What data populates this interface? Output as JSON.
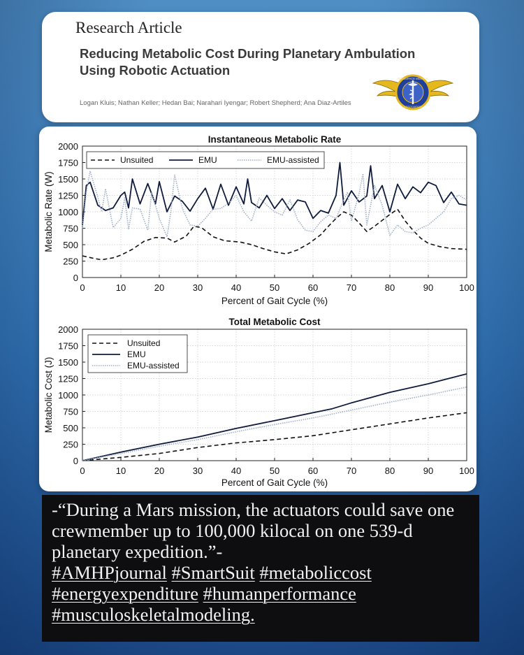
{
  "header": {
    "kicker": "Research Article",
    "title": "Reducing Metabolic Cost During Planetary Ambulation Using Robotic Actuation",
    "authors": "Logan Kluis; Nathan Keller; Hedan Bai; Narahari Iyengar; Robert Shepherd; Ana Diaz-Artiles",
    "logo_text_top": "AEROSPACE MEDICAL",
    "logo_text_bottom": "ASSOCIATION"
  },
  "colors": {
    "unsuited": "#111111",
    "emu": "#0f1b3d",
    "emu_assisted": "#9fb0c8"
  },
  "chart_data": [
    {
      "type": "line",
      "title": "Instantaneous Metabolic Rate",
      "xlabel": "Percent of Gait Cycle (%)",
      "ylabel": "Metabolic Rate (W)",
      "xlim": [
        0,
        100
      ],
      "ylim": [
        0,
        2000
      ],
      "xticks": [
        "0",
        "10",
        "20",
        "30",
        "40",
        "50",
        "60",
        "70",
        "80",
        "90",
        "100"
      ],
      "yticks": [
        "0",
        "250",
        "500",
        "750",
        "1000",
        "1250",
        "1500",
        "1750",
        "2000"
      ],
      "grid": true,
      "legend": "top",
      "series": [
        {
          "name": "Unsuited",
          "style": "dashed",
          "x": [
            0,
            3,
            5,
            8,
            10,
            13,
            16,
            19,
            22,
            24,
            27,
            29,
            31,
            34,
            37,
            41,
            44,
            47,
            50,
            53,
            56,
            59,
            62,
            64,
            66,
            68,
            70,
            72,
            74,
            76,
            78,
            80,
            82,
            84,
            86,
            88,
            90,
            93,
            96,
            100
          ],
          "y": [
            330,
            290,
            270,
            300,
            340,
            430,
            550,
            610,
            600,
            540,
            630,
            780,
            760,
            620,
            560,
            540,
            500,
            440,
            390,
            360,
            420,
            520,
            650,
            780,
            900,
            1000,
            950,
            830,
            700,
            780,
            870,
            960,
            1040,
            860,
            720,
            600,
            520,
            470,
            440,
            430
          ]
        },
        {
          "name": "EMU",
          "style": "solid",
          "x": [
            0,
            1,
            2,
            4,
            6,
            8,
            10,
            11,
            12,
            13,
            15,
            17,
            19,
            20,
            22,
            24,
            26,
            28,
            30,
            32,
            34,
            36,
            38,
            40,
            42,
            43,
            44,
            46,
            48,
            50,
            52,
            54,
            56,
            58,
            60,
            62,
            64,
            66,
            67,
            68,
            70,
            72,
            74,
            75,
            76,
            78,
            80,
            82,
            84,
            86,
            88,
            90,
            92,
            94,
            96,
            98,
            100
          ],
          "y": [
            800,
            1400,
            1450,
            1100,
            1020,
            1060,
            1250,
            1300,
            1060,
            1500,
            1120,
            1430,
            1120,
            1460,
            1000,
            1240,
            1160,
            1010,
            1200,
            1360,
            1040,
            1420,
            1100,
            1380,
            1120,
            1500,
            1140,
            1060,
            1250,
            1050,
            1200,
            1020,
            1180,
            1150,
            900,
            1020,
            980,
            1250,
            1750,
            1100,
            1320,
            1150,
            1240,
            1700,
            1200,
            1400,
            1000,
            1420,
            1200,
            1380,
            1290,
            1450,
            1400,
            1140,
            1300,
            1120,
            1100
          ]
        },
        {
          "name": "EMU-assisted",
          "style": "dotted",
          "x": [
            0,
            1,
            2,
            4,
            5,
            6,
            8,
            10,
            11,
            12,
            13,
            15,
            17,
            18,
            20,
            22,
            23,
            24,
            26,
            28,
            30,
            32,
            34,
            36,
            38,
            40,
            42,
            44,
            46,
            48,
            50,
            52,
            54,
            56,
            58,
            60,
            62,
            64,
            66,
            68,
            69,
            70,
            72,
            73,
            74,
            76,
            78,
            80,
            82,
            84,
            86,
            88,
            90,
            92,
            94,
            96,
            98,
            100
          ],
          "y": [
            750,
            1300,
            1620,
            1220,
            1000,
            1350,
            760,
            900,
            1210,
            740,
            1060,
            1040,
            720,
            1300,
            900,
            620,
            1000,
            1560,
            1050,
            800,
            780,
            900,
            1040,
            1050,
            1130,
            1250,
            1000,
            860,
            1210,
            1100,
            1000,
            950,
            1180,
            880,
            720,
            700,
            850,
            950,
            900,
            1180,
            1300,
            860,
            1280,
            1580,
            800,
            1400,
            1100,
            640,
            800,
            700,
            680,
            750,
            800,
            900,
            1000,
            1200,
            1250,
            1180
          ]
        }
      ]
    },
    {
      "type": "line",
      "title": "Total Metabolic Cost",
      "xlabel": "Percent of Gait Cycle (%)",
      "ylabel": "Metabolic Cost (J)",
      "xlim": [
        0,
        100
      ],
      "ylim": [
        0,
        2000
      ],
      "xticks": [
        "0",
        "10",
        "20",
        "30",
        "40",
        "50",
        "60",
        "70",
        "80",
        "90",
        "100"
      ],
      "yticks": [
        "0",
        "250",
        "500",
        "750",
        "1000",
        "1250",
        "1500",
        "1750",
        "2000"
      ],
      "grid": true,
      "legend": "top-left",
      "series": [
        {
          "name": "Unsuited",
          "style": "dashed",
          "x": [
            0,
            10,
            20,
            30,
            40,
            50,
            60,
            70,
            80,
            90,
            100
          ],
          "y": [
            0,
            50,
            110,
            200,
            270,
            320,
            380,
            470,
            560,
            650,
            730
          ]
        },
        {
          "name": "EMU",
          "style": "solid",
          "x": [
            0,
            10,
            20,
            30,
            40,
            50,
            60,
            65,
            70,
            80,
            90,
            100
          ],
          "y": [
            0,
            130,
            250,
            360,
            490,
            610,
            730,
            790,
            880,
            1040,
            1170,
            1320
          ]
        },
        {
          "name": "EMU-assisted",
          "style": "dotted",
          "x": [
            0,
            10,
            20,
            30,
            40,
            50,
            60,
            70,
            80,
            90,
            100
          ],
          "y": [
            0,
            110,
            220,
            320,
            440,
            550,
            650,
            770,
            890,
            1000,
            1120
          ]
        }
      ]
    }
  ],
  "quote": {
    "text": "-“During a Mars mission, the actuators could save one crewmember up to 100,000 kilocal on one 539-d planetary expedition.”-",
    "tags": [
      "#AMHPjournal",
      "#SmartSuit",
      "#metaboliccost",
      "#energyexpenditure",
      "#humanperformance",
      "#musculoskeletalmodeling."
    ]
  }
}
